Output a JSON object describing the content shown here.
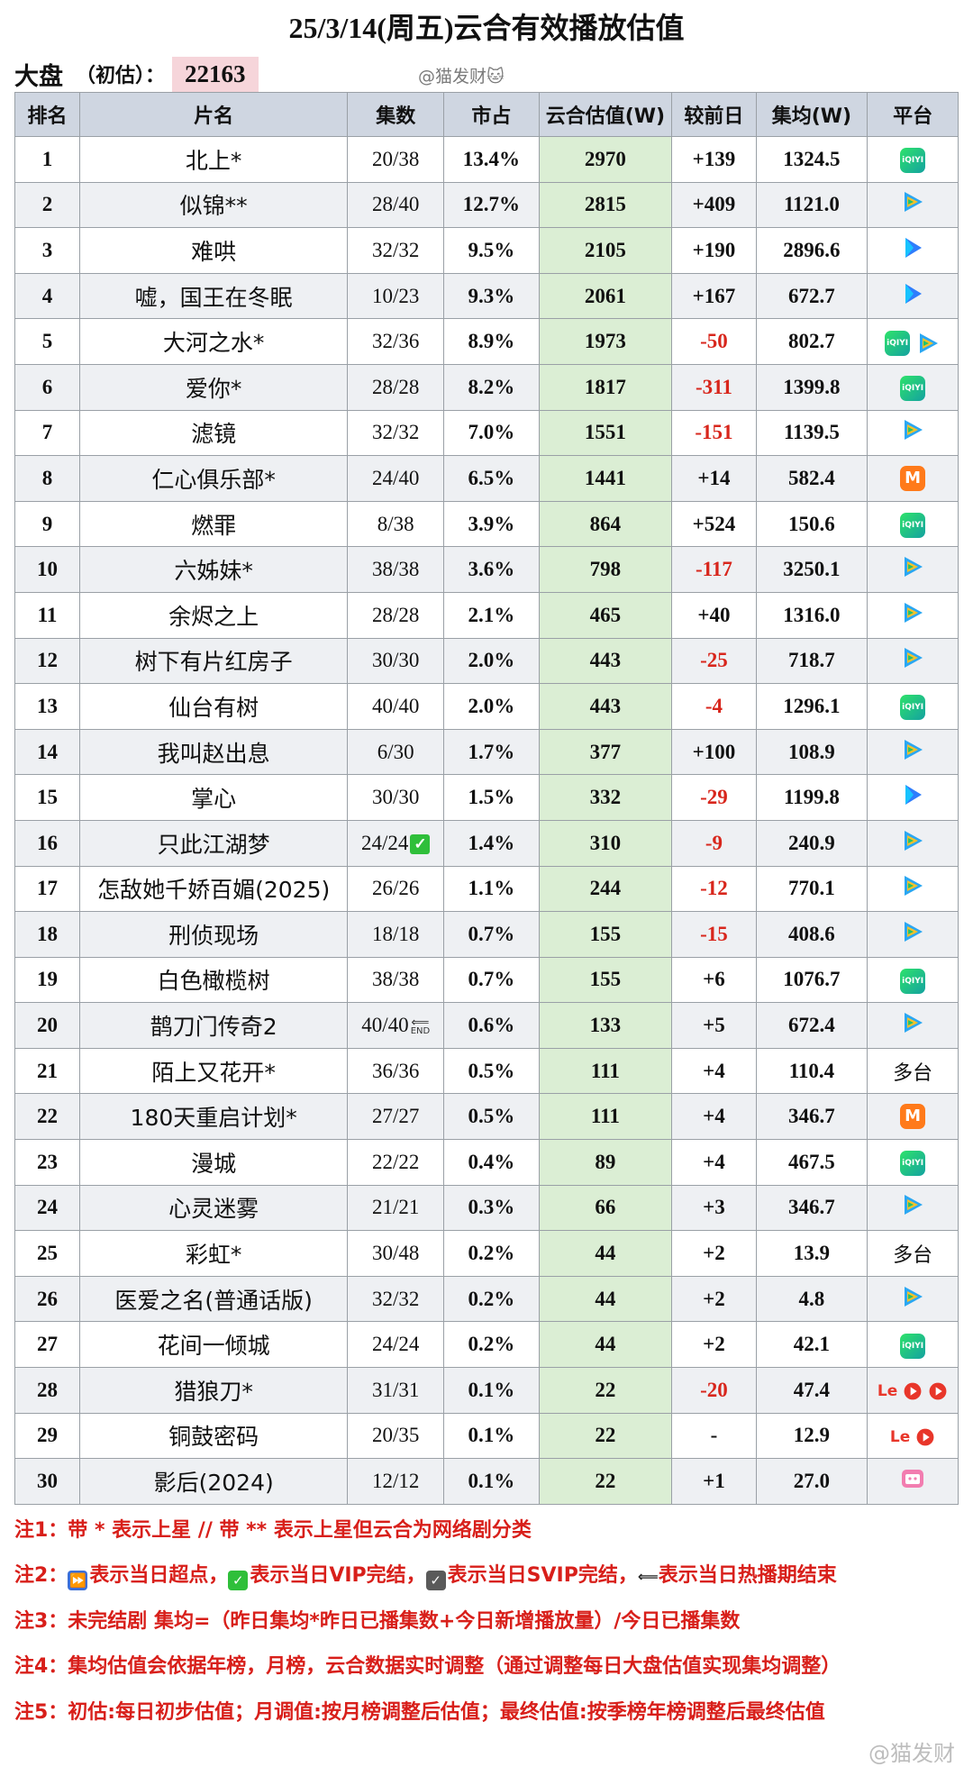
{
  "title": "25/3/14(周五)云合有效播放估值",
  "market": {
    "label": "大盘",
    "sub": "（初估）：",
    "value": "22163",
    "watermark": "@猫发财🐱"
  },
  "columns": [
    "排名",
    "片名",
    "集数",
    "市占",
    "云合估值(W)",
    "较前日",
    "集均(W)",
    "平台"
  ],
  "rows": [
    {
      "rank": "1",
      "name": "北上*",
      "eps": "20/38",
      "share": "13.4%",
      "est": "2970",
      "change": "+139",
      "avg": "1324.5",
      "platform": [
        "iqiyi-icon"
      ]
    },
    {
      "rank": "2",
      "name": "似锦**",
      "eps": "28/40",
      "share": "12.7%",
      "est": "2815",
      "change": "+409",
      "avg": "1121.0",
      "platform": [
        "tencent-video-icon"
      ]
    },
    {
      "rank": "3",
      "name": "难哄",
      "eps": "32/32",
      "share": "9.5%",
      "est": "2105",
      "change": "+190",
      "avg": "2896.6",
      "platform": [
        "youku-icon"
      ]
    },
    {
      "rank": "4",
      "name": "嘘，国王在冬眠",
      "eps": "10/23",
      "share": "9.3%",
      "est": "2061",
      "change": "+167",
      "avg": "672.7",
      "platform": [
        "youku-icon"
      ]
    },
    {
      "rank": "5",
      "name": "大河之水*",
      "eps": "32/36",
      "share": "8.9%",
      "est": "1973",
      "change": "-50",
      "avg": "802.7",
      "platform": [
        "iqiyi-icon",
        "tencent-video-icon"
      ]
    },
    {
      "rank": "6",
      "name": "爱你*",
      "eps": "28/28",
      "share": "8.2%",
      "est": "1817",
      "change": "-311",
      "avg": "1399.8",
      "platform": [
        "iqiyi-icon"
      ]
    },
    {
      "rank": "7",
      "name": "滤镜",
      "eps": "32/32",
      "share": "7.0%",
      "est": "1551",
      "change": "-151",
      "avg": "1139.5",
      "platform": [
        "tencent-video-icon"
      ]
    },
    {
      "rank": "8",
      "name": "仁心俱乐部*",
      "eps": "24/40",
      "share": "6.5%",
      "est": "1441",
      "change": "+14",
      "avg": "582.4",
      "platform": [
        "mgtv-icon"
      ]
    },
    {
      "rank": "9",
      "name": "燃罪",
      "eps": "8/38",
      "share": "3.9%",
      "est": "864",
      "change": "+524",
      "avg": "150.6",
      "platform": [
        "iqiyi-icon"
      ]
    },
    {
      "rank": "10",
      "name": "六姊妹*",
      "eps": "38/38",
      "share": "3.6%",
      "est": "798",
      "change": "-117",
      "avg": "3250.1",
      "platform": [
        "tencent-video-icon"
      ]
    },
    {
      "rank": "11",
      "name": "余烬之上",
      "eps": "28/28",
      "share": "2.1%",
      "est": "465",
      "change": "+40",
      "avg": "1316.0",
      "platform": [
        "tencent-video-icon"
      ]
    },
    {
      "rank": "12",
      "name": "树下有片红房子",
      "eps": "30/30",
      "share": "2.0%",
      "est": "443",
      "change": "-25",
      "avg": "718.7",
      "platform": [
        "tencent-video-icon"
      ]
    },
    {
      "rank": "13",
      "name": "仙台有树",
      "eps": "40/40",
      "share": "2.0%",
      "est": "443",
      "change": "-4",
      "avg": "1296.1",
      "platform": [
        "iqiyi-icon"
      ]
    },
    {
      "rank": "14",
      "name": "我叫赵出息",
      "eps": "6/30",
      "share": "1.7%",
      "est": "377",
      "change": "+100",
      "avg": "108.9",
      "platform": [
        "tencent-video-icon"
      ]
    },
    {
      "rank": "15",
      "name": "掌心",
      "eps": "30/30",
      "share": "1.5%",
      "est": "332",
      "change": "-29",
      "avg": "1199.8",
      "platform": [
        "youku-icon"
      ]
    },
    {
      "rank": "16",
      "name": "只此江湖梦",
      "eps": "24/24",
      "share": "1.4%",
      "est": "310",
      "change": "-9",
      "avg": "240.9",
      "platform": [
        "tencent-video-icon"
      ],
      "badge": "vip-check"
    },
    {
      "rank": "17",
      "name": "怎敌她千娇百媚(2025)",
      "eps": "26/26",
      "share": "1.1%",
      "est": "244",
      "change": "-12",
      "avg": "770.1",
      "platform": [
        "tencent-video-icon"
      ]
    },
    {
      "rank": "18",
      "name": "刑侦现场",
      "eps": "18/18",
      "share": "0.7%",
      "est": "155",
      "change": "-15",
      "avg": "408.6",
      "platform": [
        "tencent-video-icon"
      ]
    },
    {
      "rank": "19",
      "name": "白色橄榄树",
      "eps": "38/38",
      "share": "0.7%",
      "est": "155",
      "change": "+6",
      "avg": "1076.7",
      "platform": [
        "iqiyi-icon"
      ]
    },
    {
      "rank": "20",
      "name": "鹊刀门传奇2",
      "eps": "40/40",
      "share": "0.6%",
      "est": "133",
      "change": "+5",
      "avg": "672.4",
      "platform": [
        "tencent-video-icon"
      ],
      "badge": "end"
    },
    {
      "rank": "21",
      "name": "陌上又花开*",
      "eps": "36/36",
      "share": "0.5%",
      "est": "111",
      "change": "+4",
      "avg": "110.4",
      "platform_text": "多台"
    },
    {
      "rank": "22",
      "name": "180天重启计划*",
      "eps": "27/27",
      "share": "0.5%",
      "est": "111",
      "change": "+4",
      "avg": "346.7",
      "platform": [
        "mgtv-icon"
      ]
    },
    {
      "rank": "23",
      "name": "漫城",
      "eps": "22/22",
      "share": "0.4%",
      "est": "89",
      "change": "+4",
      "avg": "467.5",
      "platform": [
        "iqiyi-icon"
      ]
    },
    {
      "rank": "24",
      "name": "心灵迷雾",
      "eps": "21/21",
      "share": "0.3%",
      "est": "66",
      "change": "+3",
      "avg": "346.7",
      "platform": [
        "tencent-video-icon"
      ]
    },
    {
      "rank": "25",
      "name": "彩虹*",
      "eps": "30/48",
      "share": "0.2%",
      "est": "44",
      "change": "+2",
      "avg": "13.9",
      "platform_text": "多台"
    },
    {
      "rank": "26",
      "name": "医爱之名(普通话版)",
      "eps": "32/32",
      "share": "0.2%",
      "est": "44",
      "change": "+2",
      "avg": "4.8",
      "platform": [
        "tencent-video-icon"
      ]
    },
    {
      "rank": "27",
      "name": "花间一倾城",
      "eps": "24/24",
      "share": "0.2%",
      "est": "44",
      "change": "+2",
      "avg": "42.1",
      "platform": [
        "iqiyi-icon"
      ]
    },
    {
      "rank": "28",
      "name": "猎狼刀*",
      "eps": "31/31",
      "share": "0.1%",
      "est": "22",
      "change": "-20",
      "avg": "47.4",
      "platform": [
        "letv-icon",
        "play-red-icon",
        "play-red-icon"
      ]
    },
    {
      "rank": "29",
      "name": "铜鼓密码",
      "eps": "20/35",
      "share": "0.1%",
      "est": "22",
      "change": "-",
      "avg": "12.9",
      "platform": [
        "letv-icon",
        "play-red-icon"
      ]
    },
    {
      "rank": "30",
      "name": "影后(2024)",
      "eps": "12/12",
      "share": "0.1%",
      "est": "22",
      "change": "+1",
      "avg": "27.0",
      "platform": [
        "bilibili-icon"
      ]
    }
  ],
  "badge_text": {
    "end": "END",
    "check": "✓"
  },
  "platform_labels": {
    "iqiyi": "iQIYI",
    "mgtv": "M",
    "letv": "Le"
  },
  "notes": {
    "n1": "注1：带 * 表示上星 // 带 ** 表示上星但云合为网络剧分类",
    "n2_prefix": "注2：",
    "n2_a": "表示当日超点，",
    "n2_b": "表示当日VIP完结，",
    "n2_c": "表示当日SVIP完结，",
    "n2_d": "表示当日热播期结束",
    "n3": "注3：未完结剧 集均=（昨日集均*昨日已播集数+今日新增播放量）/今日已播集数",
    "n4": "注4：集均估值会依据年榜，月榜，云合数据实时调整（通过调整每日大盘估值实现集均调整）",
    "n5": "注5：初估:每日初步估值；月调值:按月榜调整后估值；最终估值:按季榜年榜调整后最终估值"
  },
  "bottom_watermark": "@猫发财"
}
